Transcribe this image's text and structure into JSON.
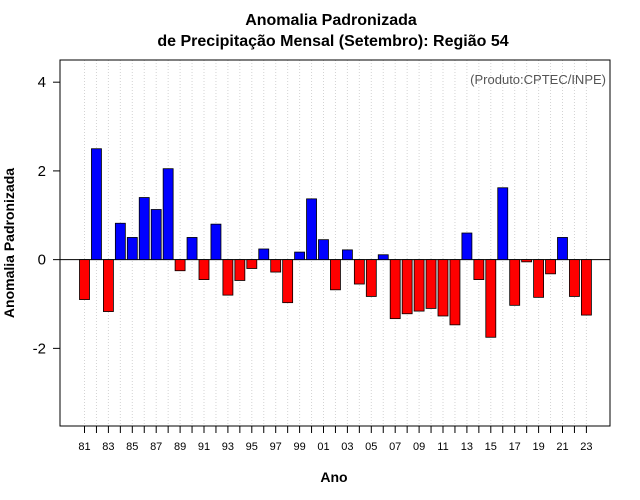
{
  "chart_data": {
    "type": "bar",
    "title_line1": "Anomalia Padronizada",
    "title_line2": "de Precipitação Mensal (Setembro): Região 54",
    "xlabel": "Ano",
    "ylabel": "Anomalia Padronizada",
    "annotation": "(Produto:CPTEC/INPE)",
    "ylim": [
      -3.75,
      4.5
    ],
    "yticks": [
      -2,
      0,
      2,
      4
    ],
    "positive_color": "#0000ff",
    "negative_color": "#ff0000",
    "categories": [
      "81",
      "82",
      "83",
      "84",
      "85",
      "86",
      "87",
      "88",
      "89",
      "90",
      "91",
      "92",
      "93",
      "94",
      "95",
      "96",
      "97",
      "98",
      "99",
      "00",
      "01",
      "02",
      "03",
      "04",
      "05",
      "06",
      "07",
      "08",
      "09",
      "10",
      "11",
      "12",
      "13",
      "14",
      "15",
      "16",
      "17",
      "18",
      "19",
      "20",
      "21",
      "22",
      "23"
    ],
    "tick_labels": [
      "81",
      "83",
      "85",
      "87",
      "89",
      "91",
      "93",
      "95",
      "97",
      "99",
      "01",
      "03",
      "05",
      "07",
      "09",
      "11",
      "13",
      "15",
      "17",
      "19",
      "21",
      "23"
    ],
    "values": [
      -0.9,
      2.5,
      -1.17,
      0.82,
      0.5,
      1.4,
      1.13,
      2.05,
      -0.25,
      0.5,
      -0.45,
      0.8,
      -0.8,
      -0.47,
      -0.2,
      0.24,
      -0.28,
      -0.97,
      0.17,
      1.37,
      0.45,
      -0.68,
      0.22,
      -0.55,
      -0.83,
      0.11,
      -1.33,
      -1.22,
      -1.16,
      -1.1,
      -1.27,
      -1.47,
      0.6,
      -0.45,
      -1.75,
      1.62,
      -1.03,
      -0.05,
      -0.85,
      -0.32,
      0.5,
      -0.83,
      -1.25
    ]
  }
}
